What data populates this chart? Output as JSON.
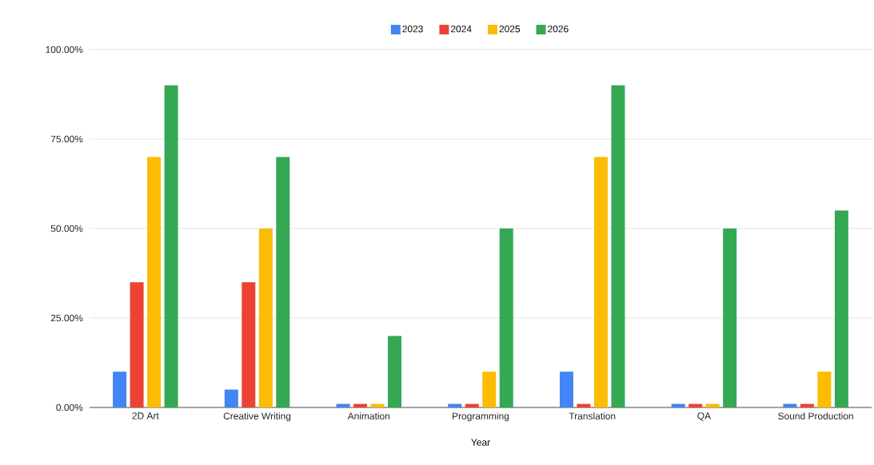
{
  "chart_data": {
    "type": "bar",
    "xlabel": "Year",
    "categories": [
      "2D Art",
      "Creative Writing",
      "Animation",
      "Programming",
      "Translation",
      "QA",
      "Sound Production"
    ],
    "series": [
      {
        "name": "2023",
        "color": "#4285f4",
        "values": [
          10,
          5,
          1,
          1,
          10,
          1,
          1
        ]
      },
      {
        "name": "2024",
        "color": "#ea4335",
        "values": [
          35,
          35,
          1,
          1,
          1,
          1,
          1
        ]
      },
      {
        "name": "2025",
        "color": "#fbbc04",
        "values": [
          70,
          50,
          1,
          10,
          70,
          1,
          10
        ]
      },
      {
        "name": "2026",
        "color": "#34a853",
        "values": [
          90,
          70,
          20,
          50,
          90,
          50,
          55
        ]
      }
    ],
    "ylim": [
      0,
      100
    ],
    "yticks": [
      {
        "value": 0,
        "label": "0.00%"
      },
      {
        "value": 25,
        "label": "25.00%"
      },
      {
        "value": 50,
        "label": "50.00%"
      },
      {
        "value": 75,
        "label": "75.00%"
      },
      {
        "value": 100,
        "label": "100.00%"
      }
    ],
    "grid": "y",
    "legend": "top"
  }
}
